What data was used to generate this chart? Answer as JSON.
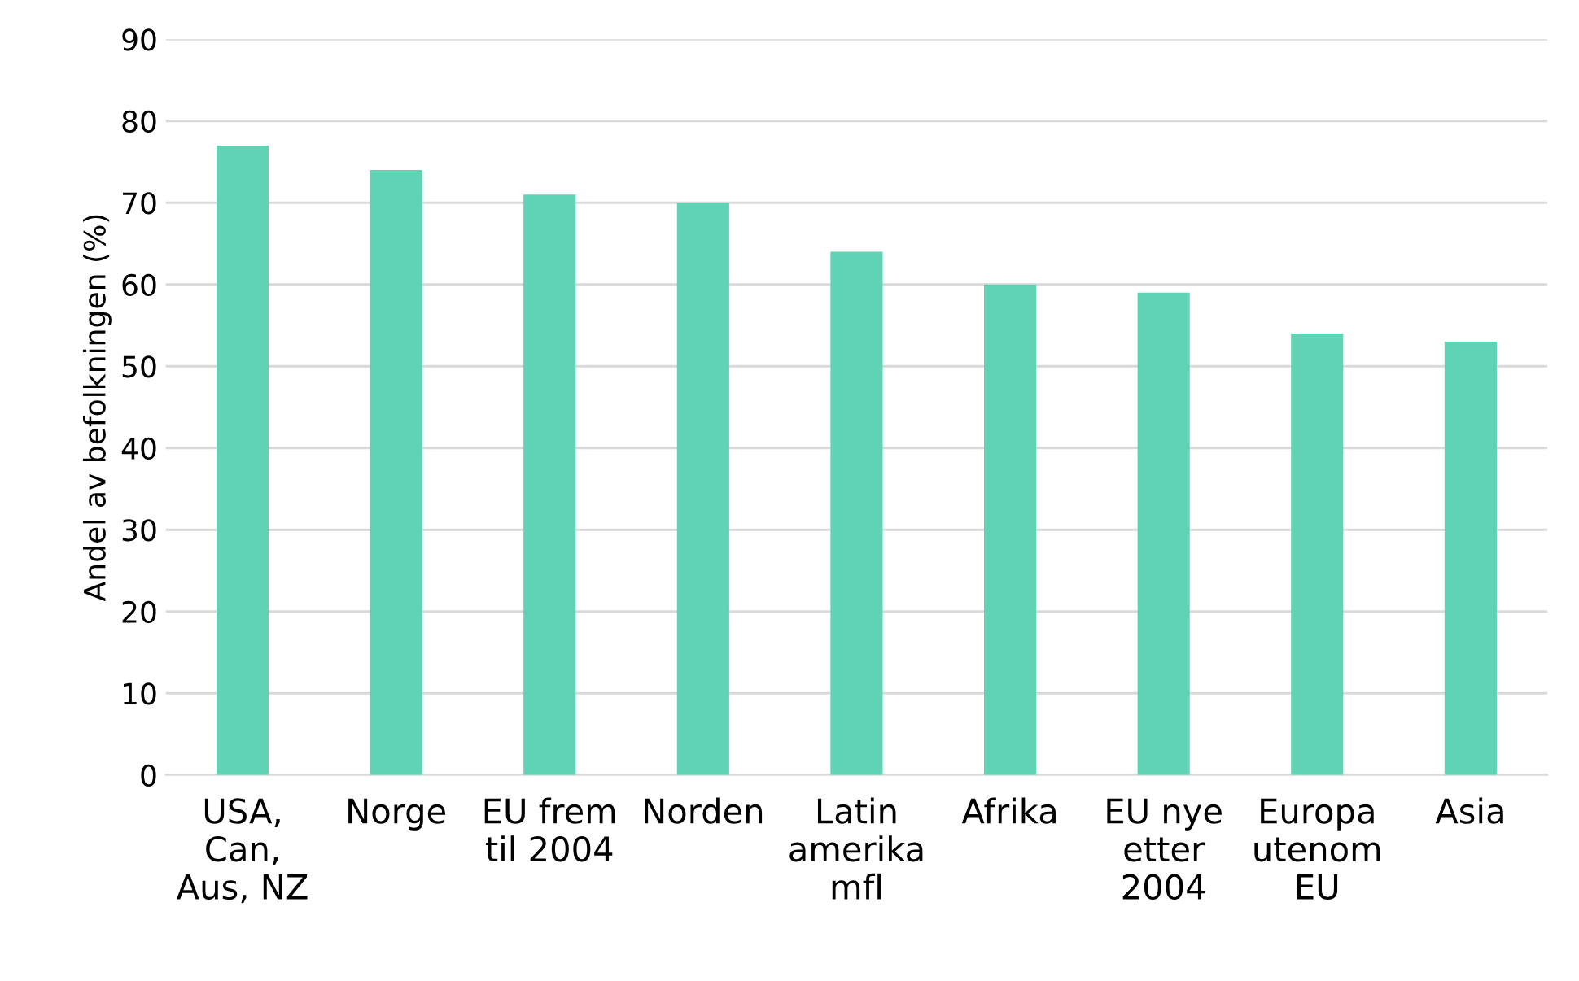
{
  "chart_data": {
    "type": "bar",
    "ylabel": "Andel av befolkningen (%)",
    "categories": [
      "USA,\nCan,\nAus, NZ",
      "Norge",
      "EU frem\ntil 2004",
      "Norden",
      "Latin\namerika\nmfl",
      "Afrika",
      "EU nye\netter\n2004",
      "Europa\nutenom\nEU",
      "Asia"
    ],
    "values": [
      77,
      74,
      71,
      70,
      64,
      60,
      59,
      54,
      53
    ],
    "color": "#5fd3b3",
    "ylim": [
      0,
      90
    ],
    "yticks": [
      0,
      10,
      20,
      30,
      40,
      50,
      60,
      70,
      80,
      90
    ],
    "grid": "y",
    "legend": false
  }
}
